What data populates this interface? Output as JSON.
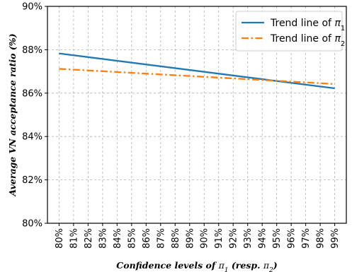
{
  "chart_data": {
    "type": "line",
    "xlabel_prefix": "Confidence levels of ",
    "xlabel_symbol1": "π",
    "xlabel_sub1": "1",
    "xlabel_mid": " (resp. ",
    "xlabel_symbol2": "π",
    "xlabel_sub2": "2",
    "xlabel_suffix": ")",
    "ylabel": "Average VN acceptance ratio (%)",
    "x_ticks": [
      "80%",
      "81%",
      "82%",
      "83%",
      "84%",
      "85%",
      "86%",
      "87%",
      "88%",
      "89%",
      "90%",
      "91%",
      "92%",
      "93%",
      "94%",
      "95%",
      "96%",
      "97%",
      "98%",
      "99%"
    ],
    "x_values": [
      80,
      81,
      82,
      83,
      84,
      85,
      86,
      87,
      88,
      89,
      90,
      91,
      92,
      93,
      94,
      95,
      96,
      97,
      98,
      99
    ],
    "y_ticks": [
      "80%",
      "82%",
      "84%",
      "86%",
      "88%",
      "90%"
    ],
    "y_tick_values": [
      80,
      82,
      84,
      86,
      88,
      90
    ],
    "ylim": [
      80,
      90
    ],
    "xlim": [
      79.2,
      99.8
    ],
    "grid": true,
    "legend_position": "top-right",
    "series": [
      {
        "name_prefix": "Trend line of ",
        "name_symbol": "π",
        "name_sub": "1",
        "color": "#1f77b4",
        "style": "solid",
        "x": [
          80,
          99
        ],
        "y": [
          87.83,
          86.22
        ]
      },
      {
        "name_prefix": "Trend line of ",
        "name_symbol": "π",
        "name_sub": "2",
        "color": "#ff7f0e",
        "style": "dashdot",
        "x": [
          80,
          99
        ],
        "y": [
          87.12,
          86.42
        ]
      }
    ]
  }
}
